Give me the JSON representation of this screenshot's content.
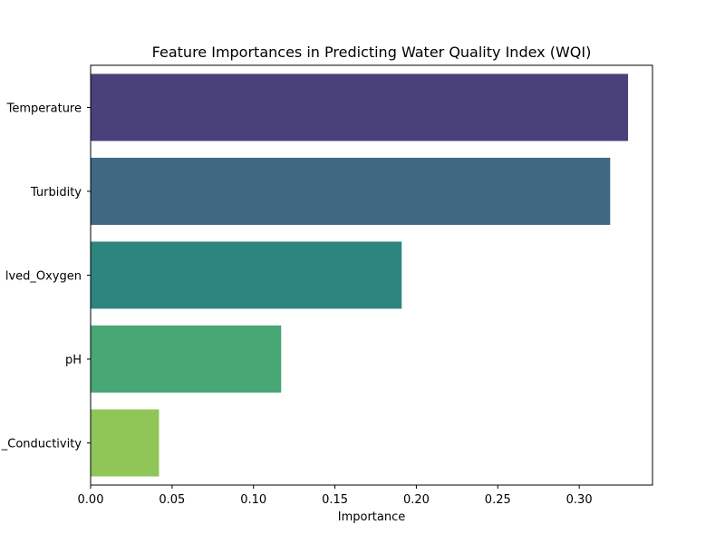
{
  "chart_data": {
    "type": "bar",
    "orientation": "horizontal",
    "title": "Feature Importances in Predicting Water Quality Index (WQI)",
    "xlabel": "Importance",
    "ylabel": "",
    "xlim": [
      0,
      0.345
    ],
    "xticks": [
      "0.00",
      "0.05",
      "0.10",
      "0.15",
      "0.20",
      "0.25",
      "0.30"
    ],
    "xtick_values": [
      0,
      0.05,
      0.1,
      0.15,
      0.2,
      0.25,
      0.3
    ],
    "categories": [
      "Temperature",
      "Turbidity",
      "lved_Oxygen",
      "pH",
      "_Conductivity"
    ],
    "values": [
      0.33,
      0.319,
      0.191,
      0.117,
      0.042
    ],
    "colors": [
      "#4a417b",
      "#3f6883",
      "#2e8580",
      "#47a875",
      "#90c558"
    ],
    "grid": false,
    "legend": "none"
  }
}
